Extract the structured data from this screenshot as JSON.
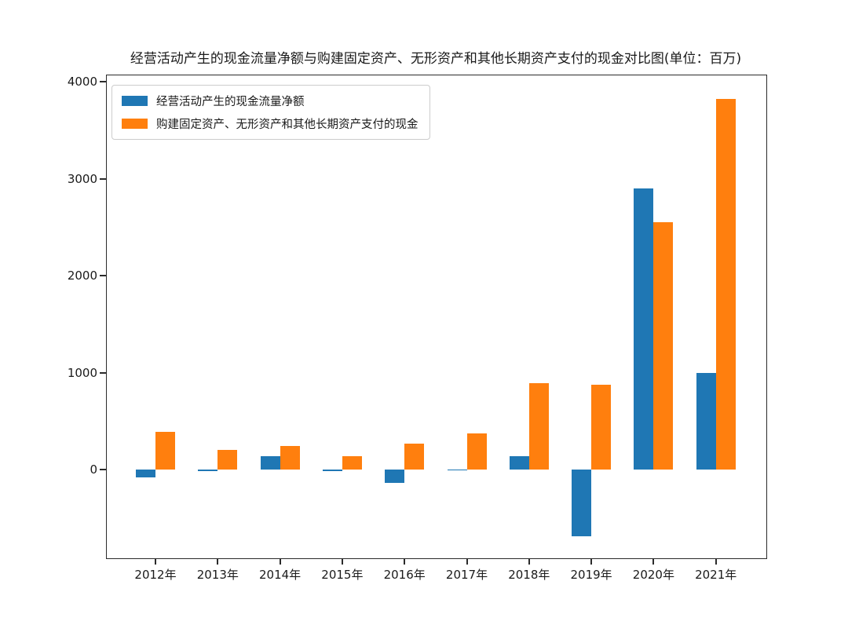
{
  "title": "经营活动产生的现金流量净额与购建固定资产、无形资产和其他长期资产支付的现金对比图(单位：百万)",
  "colors": {
    "series_net_cash": "#1f77b4",
    "series_capex_cash": "#ff7f0e",
    "axis_text": "#1a1a1a"
  },
  "chart_data": {
    "type": "bar",
    "title": "经营活动产生的现金流量净额与购建固定资产、无形资产和其他长期资产支付的现金对比图(单位：百万)",
    "categories": [
      "2012年",
      "2013年",
      "2014年",
      "2015年",
      "2016年",
      "2017年",
      "2018年",
      "2019年",
      "2020年",
      "2021年"
    ],
    "series": [
      {
        "name": "经营活动产生的现金流量净额",
        "color": "#1f77b4",
        "values": [
          -80,
          -15,
          140,
          -20,
          -140,
          -10,
          140,
          -690,
          2900,
          1000
        ]
      },
      {
        "name": "购建固定资产、无形资产和其他长期资产支付的现金",
        "color": "#ff7f0e",
        "values": [
          390,
          205,
          245,
          140,
          270,
          370,
          890,
          875,
          2550,
          3820
        ]
      }
    ],
    "yticks": [
      0,
      1000,
      2000,
      3000,
      4000
    ],
    "ylim": [
      -915,
      4065
    ],
    "xlabel": "",
    "ylabel": "",
    "grid": false,
    "legend_position": "upper-left"
  }
}
